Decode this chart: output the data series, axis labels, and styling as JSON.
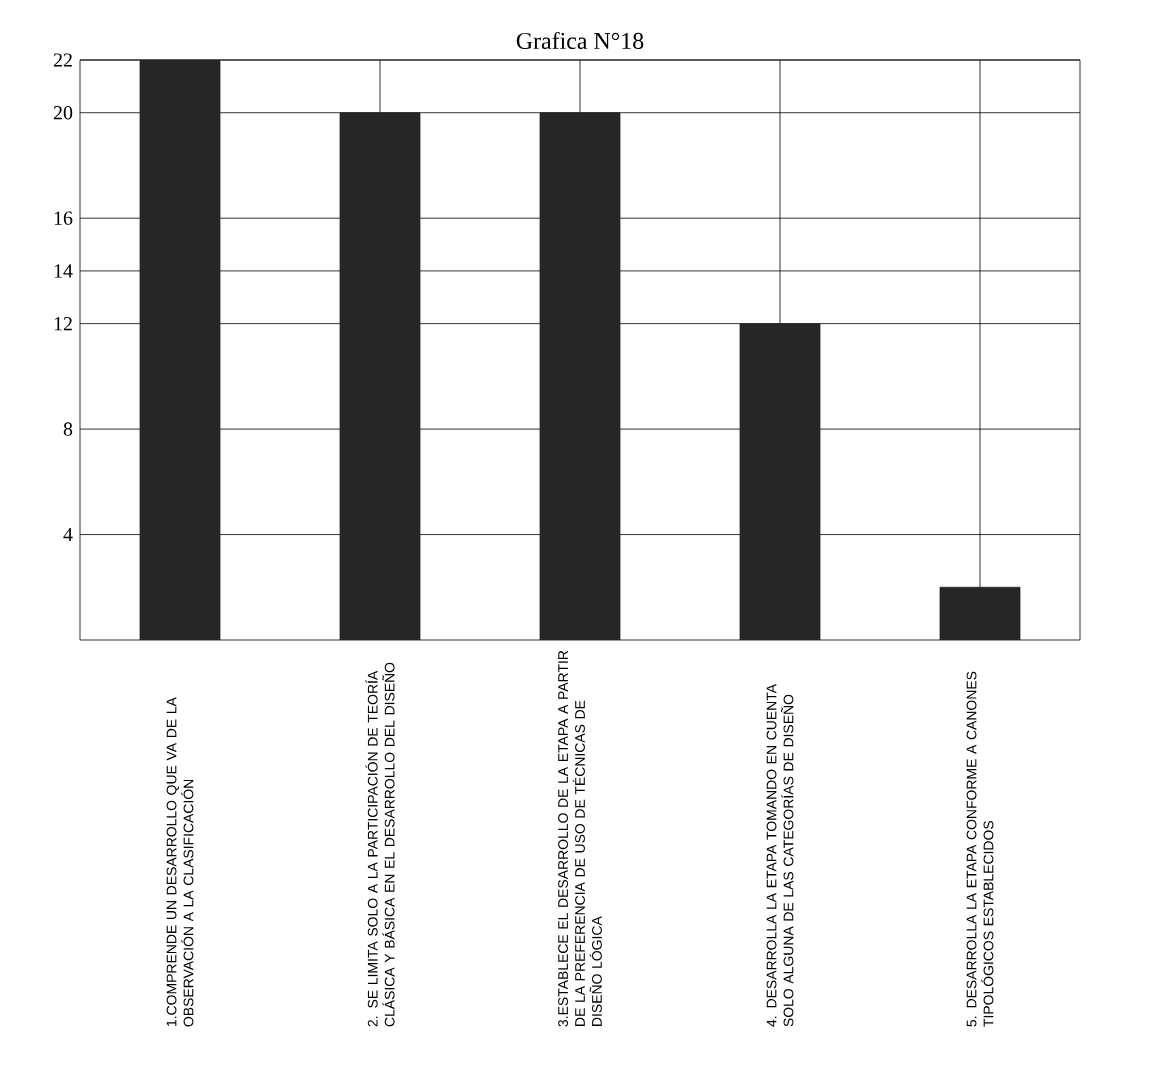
{
  "chart_data": {
    "type": "bar",
    "title": "Grafica N°18",
    "categories": [
      "1.COMPRENDE UN DESARROLLO QUE VA DE LA OBSERVACIÓN A LA CLASIFICACIÓN",
      "2. SE LIMITA SOLO A LA PARTICIPACIÓN DE TEORÍA CLÁSICA Y BÁSICA EN EL DESARROLLO DEL DISEÑO",
      "3.ESTABLECE EL DESARROLLO DE LA ETAPA A PARTIR DE LA PREFERENCIA DE USO DE TÉCNICAS DE DISEÑO LÓGICA",
      "4. DESARROLLA LA ETAPA TOMANDO EN CUENTA SOLO ALGUNA DE LAS CATEGORÍAS DE DISEÑO",
      "5. DESARROLLA LA ETAPA CONFORME A CANONES TIPOLÓGICOS ESTABLECIDOS"
    ],
    "values": [
      22,
      20,
      20,
      12,
      2
    ],
    "color": "#262626",
    "ylim": [
      0,
      22
    ],
    "yticks": [
      4,
      8,
      12,
      14,
      16,
      20,
      22
    ],
    "grid": true
  }
}
